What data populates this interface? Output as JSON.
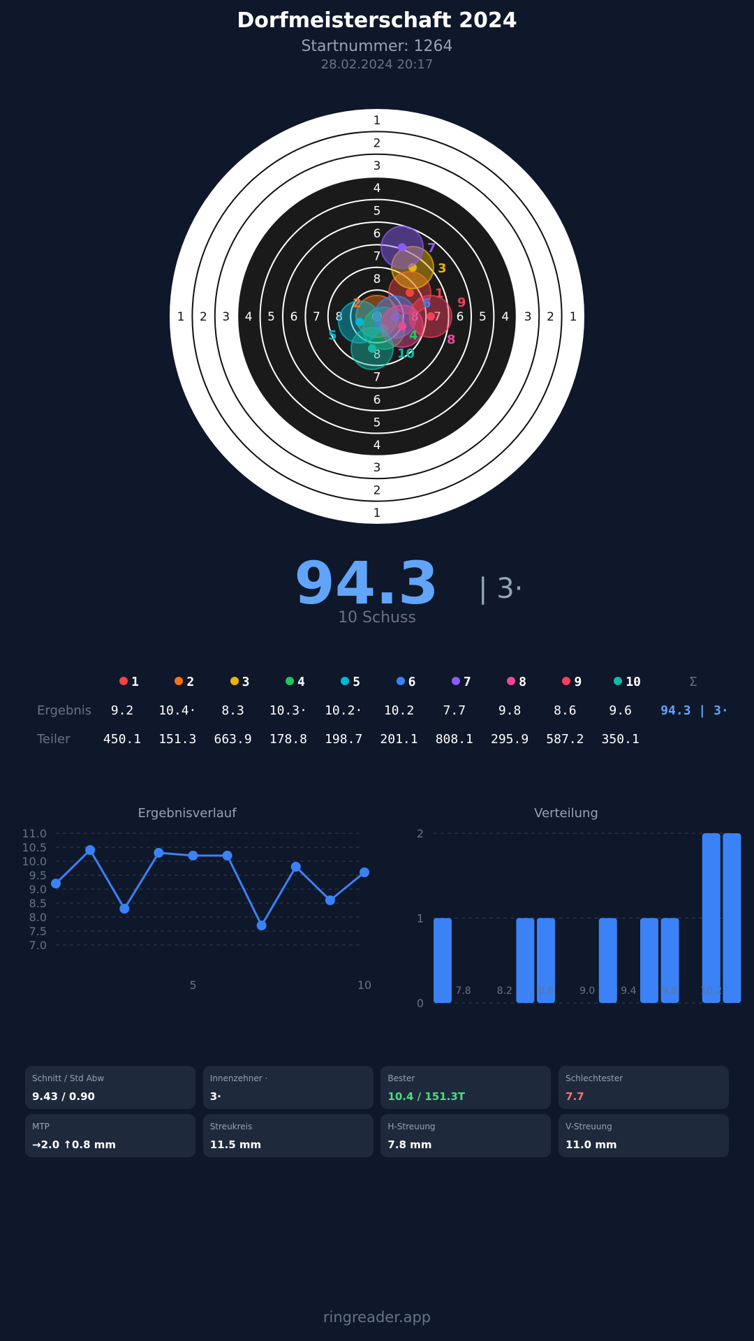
{
  "header": {
    "title": "Dorfmeisterschaft 2024",
    "start_number": "Startnummer: 1264",
    "datetime": "28.02.2024 20:17"
  },
  "target": {
    "ring_labels": [
      "1",
      "2",
      "3",
      "4",
      "5",
      "6",
      "7",
      "8"
    ]
  },
  "shots": [
    {
      "n": "1",
      "color": "#ef4444",
      "result": "9.2",
      "teiler": "450.1"
    },
    {
      "n": "2",
      "color": "#f97316",
      "result": "10.4·",
      "teiler": "151.3"
    },
    {
      "n": "3",
      "color": "#eab308",
      "result": "8.3",
      "teiler": "663.9"
    },
    {
      "n": "4",
      "color": "#22c55e",
      "result": "10.3·",
      "teiler": "178.8"
    },
    {
      "n": "5",
      "color": "#06b6d4",
      "result": "10.2·",
      "teiler": "198.7"
    },
    {
      "n": "6",
      "color": "#3b82f6",
      "result": "10.2",
      "teiler": "201.1"
    },
    {
      "n": "7",
      "color": "#8b5cf6",
      "result": "7.7",
      "teiler": "808.1"
    },
    {
      "n": "8",
      "color": "#ec4899",
      "result": "9.8",
      "teiler": "295.9"
    },
    {
      "n": "9",
      "color": "#f43f5e",
      "result": "8.6",
      "teiler": "587.2"
    },
    {
      "n": "10",
      "color": "#14b8a6",
      "result": "9.6",
      "teiler": "350.1"
    }
  ],
  "summary": {
    "total": "94.3",
    "inner_tens": "| 3·",
    "shot_count": "10 Schuss",
    "sum_symbol": "Σ",
    "sum_value": "94.3 | 3·"
  },
  "table": {
    "result_label": "Ergebnis",
    "teiler_label": "Teiler"
  },
  "chart_data": [
    {
      "type": "line",
      "title": "Ergebnisverlauf",
      "x": [
        1,
        2,
        3,
        4,
        5,
        6,
        7,
        8,
        9,
        10
      ],
      "values": [
        9.2,
        10.4,
        8.3,
        10.3,
        10.2,
        10.2,
        7.7,
        9.8,
        8.6,
        9.6
      ],
      "ylim": [
        7.0,
        11.0
      ],
      "yticks": [
        "7.0",
        "7.5",
        "8.0",
        "8.5",
        "9.0",
        "9.5",
        "10.0",
        "10.5",
        "11.0"
      ],
      "xticks": [
        "5",
        "10"
      ],
      "grid": true,
      "color": "#3b82f6"
    },
    {
      "type": "bar",
      "title": "Verteilung",
      "categories": [
        "7.6",
        "7.8",
        "8.0",
        "8.2",
        "8.4",
        "8.6",
        "8.8",
        "9.0",
        "9.2",
        "9.4",
        "9.6",
        "9.8",
        "10.0",
        "10.2",
        "10.4"
      ],
      "values": [
        1,
        0,
        0,
        0,
        1,
        1,
        0,
        0,
        1,
        0,
        1,
        1,
        0,
        2,
        2
      ],
      "xticks": [
        "7.8",
        "8.2",
        "8.6",
        "9.0",
        "9.4",
        "9.8",
        "10.2"
      ],
      "yticks": [
        "0",
        "1",
        "2"
      ],
      "ylim": [
        0,
        2
      ],
      "grid": true,
      "color": "#3b82f6"
    }
  ],
  "stats": [
    {
      "label": "Schnitt / Std Abw",
      "value": "9.43 / 0.90",
      "color": "#ffffff"
    },
    {
      "label": "Innenzehner ·",
      "value": "3·",
      "color": "#ffffff"
    },
    {
      "label": "Bester",
      "value": "10.4 / 151.3T",
      "color": "#4ade80"
    },
    {
      "label": "Schlechtester",
      "value": "7.7",
      "color": "#f87171"
    },
    {
      "label": "MTP",
      "value": "→2.0 ↑0.8 mm",
      "color": "#ffffff"
    },
    {
      "label": "Streukreis",
      "value": "11.5 mm",
      "color": "#ffffff"
    },
    {
      "label": "H-Streuung",
      "value": "7.8 mm",
      "color": "#ffffff"
    },
    {
      "label": "V-Streuung",
      "value": "11.0 mm",
      "color": "#ffffff"
    }
  ],
  "footer": "ringreader.app"
}
